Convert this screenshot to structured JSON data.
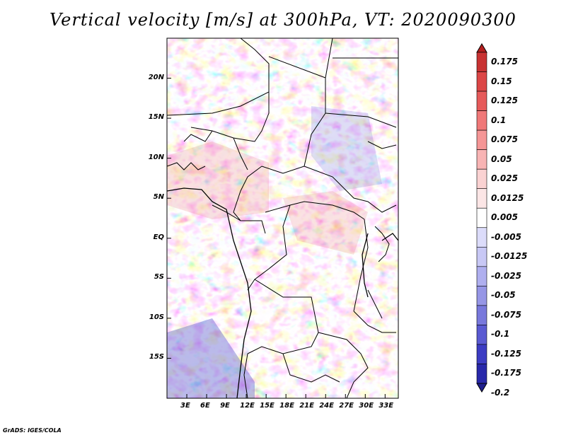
{
  "title": "Vertical velocity [m/s] at 300hPa, VT: 2020090300",
  "footer": "GrADS: IGES/COLA",
  "map": {
    "lon_range": [
      0,
      35
    ],
    "lat_range": [
      -20,
      25
    ],
    "lat_ticks": [
      {
        "label": "20N"
      },
      {
        "label": "15N"
      },
      {
        "label": "10N"
      },
      {
        "label": "5N"
      },
      {
        "label": "EQ"
      },
      {
        "label": "5S"
      },
      {
        "label": "10S"
      },
      {
        "label": "15S"
      }
    ],
    "lon_ticks": [
      {
        "label": "3E"
      },
      {
        "label": "6E"
      },
      {
        "label": "9E"
      },
      {
        "label": "12E"
      },
      {
        "label": "15E"
      },
      {
        "label": "18E"
      },
      {
        "label": "21E"
      },
      {
        "label": "24E"
      },
      {
        "label": "27E"
      },
      {
        "label": "30E"
      },
      {
        "label": "33E"
      }
    ]
  },
  "colorbar": {
    "labels": [
      "0.175",
      "0.15",
      "0.125",
      "0.1",
      "0.075",
      "0.05",
      "0.025",
      "0.0125",
      "0.005",
      "-0.005",
      "-0.0125",
      "-0.025",
      "-0.05",
      "-0.075",
      "-0.1",
      "-0.125",
      "-0.175",
      "-0.2"
    ],
    "colors": [
      "#b41e1e",
      "#c83232",
      "#dc4646",
      "#e65a5a",
      "#f07878",
      "#f59696",
      "#f8b4b4",
      "#fad2d2",
      "#fce6e6",
      "#ffffff",
      "#dcdcfa",
      "#c8c8f5",
      "#afafef",
      "#9696e6",
      "#7878dc",
      "#5a5ad2",
      "#3c3cc3",
      "#2828aa",
      "#1e1e8c"
    ]
  }
}
